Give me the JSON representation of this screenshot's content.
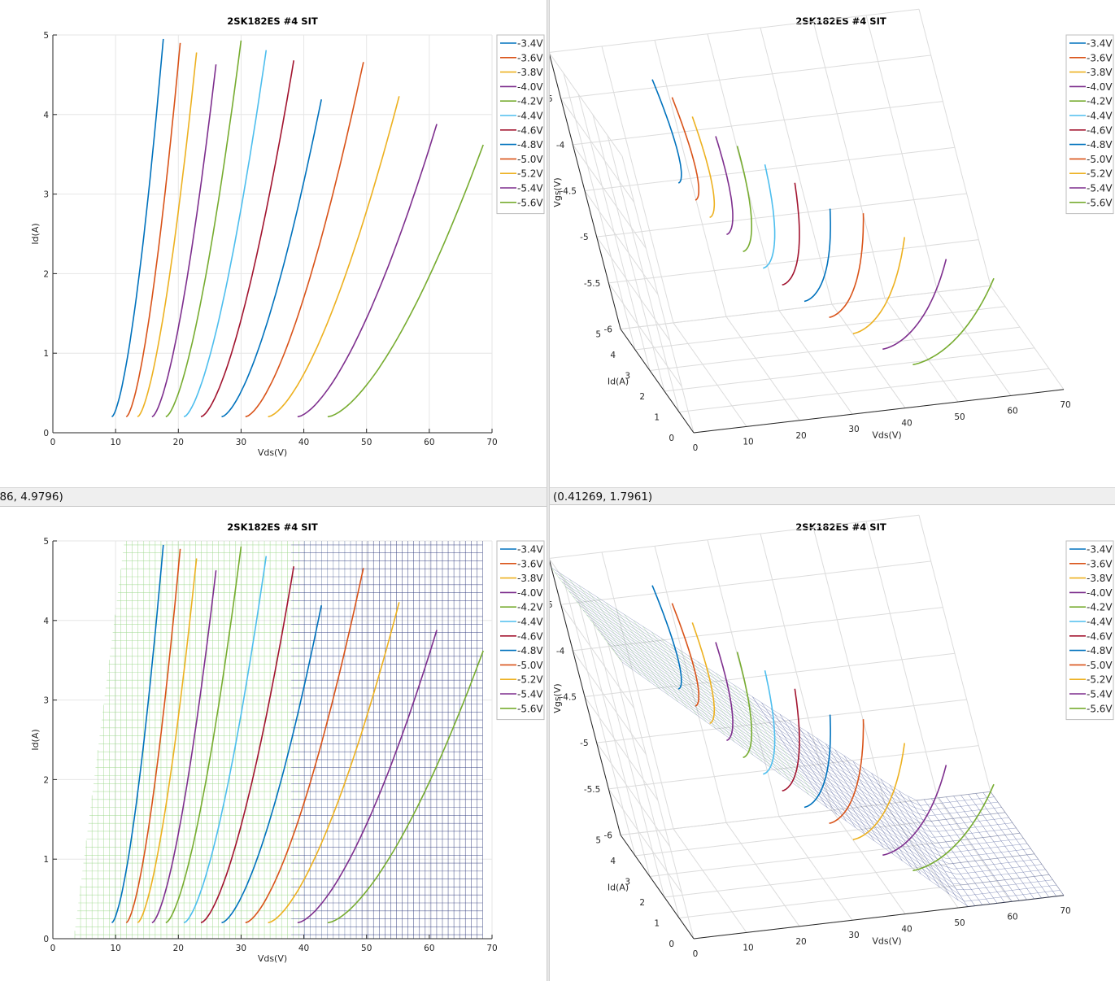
{
  "colors": {
    "series": [
      "#0072BD",
      "#D95319",
      "#EDB120",
      "#7E2F8E",
      "#77AC30",
      "#4DBEEE",
      "#A2142F",
      "#0072BD",
      "#D95319",
      "#EDB120",
      "#7E2F8E",
      "#77AC30"
    ],
    "axis": "#262626",
    "grid": "#e6e6e6",
    "statusbar": "#efefef"
  },
  "status": {
    "left": "3.586, 4.9796)",
    "right": "(0.41269, 1.7961)"
  },
  "chart_data": [
    {
      "id": "top-left",
      "type": "line",
      "title": "2SK182ES #4 SIT",
      "xlabel": "Vds(V)",
      "ylabel": "Id(A)",
      "xlim": [
        0,
        70
      ],
      "ylim": [
        0,
        5
      ],
      "xticks": [
        "0",
        "10",
        "20",
        "30",
        "40",
        "50",
        "60",
        "70"
      ],
      "yticks": [
        "0",
        "1",
        "2",
        "3",
        "4",
        "5"
      ],
      "grid": true,
      "legend": "top-right outside",
      "series_names": [
        "-3.4V",
        "-3.6V",
        "-3.8V",
        "-4.0V",
        "-4.2V",
        "-4.4V",
        "-4.6V",
        "-4.8V",
        "-5.0V",
        "-5.2V",
        "-5.4V",
        "-5.6V"
      ],
      "curves": [
        {
          "vgs": -3.4,
          "x0": 9.4,
          "x1": 17.6,
          "ymax": 4.95
        },
        {
          "vgs": -3.6,
          "x0": 11.7,
          "x1": 20.3,
          "ymax": 4.9
        },
        {
          "vgs": -3.8,
          "x0": 13.5,
          "x1": 22.9,
          "ymax": 4.78
        },
        {
          "vgs": -4.0,
          "x0": 15.8,
          "x1": 26.0,
          "ymax": 4.63
        },
        {
          "vgs": -4.2,
          "x0": 18.0,
          "x1": 30.0,
          "ymax": 4.93
        },
        {
          "vgs": -4.4,
          "x0": 20.9,
          "x1": 34.0,
          "ymax": 4.81
        },
        {
          "vgs": -4.6,
          "x0": 23.6,
          "x1": 38.4,
          "ymax": 4.68
        },
        {
          "vgs": -4.8,
          "x0": 26.9,
          "x1": 42.8,
          "ymax": 4.19
        },
        {
          "vgs": -5.0,
          "x0": 30.7,
          "x1": 49.5,
          "ymax": 4.66
        },
        {
          "vgs": -5.2,
          "x0": 34.3,
          "x1": 55.2,
          "ymax": 4.23
        },
        {
          "vgs": -5.4,
          "x0": 39.0,
          "x1": 61.2,
          "ymax": 3.88
        },
        {
          "vgs": -5.6,
          "x0": 43.8,
          "x1": 68.6,
          "ymax": 3.62
        }
      ]
    },
    {
      "id": "top-right",
      "type": "line",
      "title": "2SK182ES #4 SIT",
      "xlabel": "Vds(V)",
      "ylabel": "Id(A)",
      "zlabel": "Vgs(V)",
      "xticks": [
        "0",
        "10",
        "20",
        "30",
        "40",
        "50",
        "60",
        "70"
      ],
      "yticks": [
        "0",
        "1",
        "2",
        "3",
        "4",
        "5"
      ],
      "zticks": [
        "-3",
        "-3.5",
        "-4",
        "-4.5",
        "-5",
        "-5.5",
        "-6"
      ],
      "legend": "top-right outside",
      "series_names": [
        "-3.4V",
        "-3.6V",
        "-3.8V",
        "-4.0V",
        "-4.2V",
        "-4.4V",
        "-4.6V",
        "-4.8V",
        "-5.0V",
        "-5.2V",
        "-5.4V",
        "-5.6V"
      ]
    },
    {
      "id": "bottom-left",
      "type": "line",
      "title": "2SK182ES #4 SIT",
      "xlabel": "Vds(V)",
      "ylabel": "Id(A)",
      "xlim": [
        0,
        70
      ],
      "ylim": [
        0,
        5
      ],
      "xticks": [
        "0",
        "10",
        "20",
        "30",
        "40",
        "50",
        "60",
        "70"
      ],
      "yticks": [
        "0",
        "1",
        "2",
        "3",
        "4",
        "5"
      ],
      "grid": true,
      "legend": "top-right outside",
      "series_names": [
        "-3.4V",
        "-3.6V",
        "-3.8V",
        "-4.0V",
        "-4.2V",
        "-4.4V",
        "-4.6V",
        "-4.8V",
        "-5.0V",
        "-5.2V",
        "-5.4V",
        "-5.6V"
      ]
    },
    {
      "id": "bottom-right",
      "type": "line",
      "title": "2SK182ES #4 SIT",
      "xlabel": "Vds(V)",
      "ylabel": "Id(A)",
      "zlabel": "Vgs(V)",
      "xticks": [
        "0",
        "10",
        "20",
        "30",
        "40",
        "50",
        "60",
        "70"
      ],
      "yticks": [
        "0",
        "1",
        "2",
        "3",
        "4",
        "5"
      ],
      "zticks": [
        "-3",
        "-3.5",
        "-4",
        "-4.5",
        "-5",
        "-5.5",
        "-6"
      ],
      "legend": "top-right outside",
      "series_names": [
        "-3.4V",
        "-3.6V",
        "-3.8V",
        "-4.0V",
        "-4.2V",
        "-4.4V",
        "-4.6V",
        "-4.8V",
        "-5.0V",
        "-5.2V",
        "-5.4V",
        "-5.6V"
      ]
    }
  ]
}
